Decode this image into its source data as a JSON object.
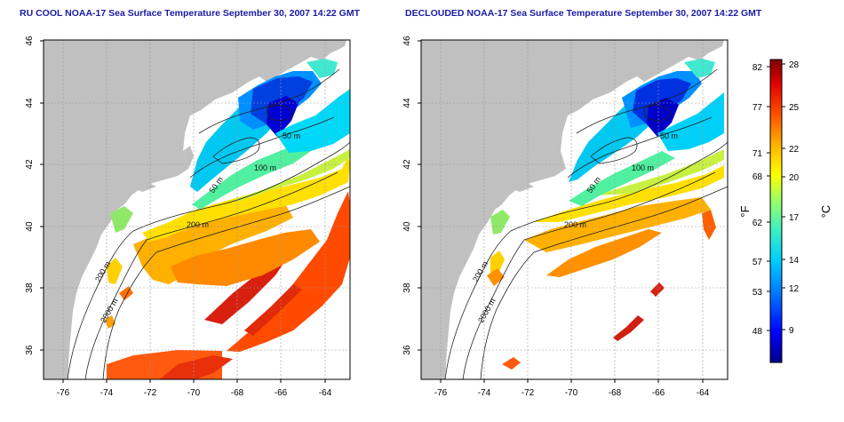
{
  "maps": [
    {
      "id": "ru-cool",
      "title": "RU COOL NOAA-17 Sea Surface Temperature September 30, 2007 14:22 GMT",
      "variant": "raw",
      "x_ticks": [
        "-76",
        "-74",
        "-72",
        "-70",
        "-68",
        "-66",
        "-64"
      ],
      "y_ticks": [
        "36",
        "38",
        "40",
        "42",
        "44",
        "46"
      ],
      "contour_labels": [
        "50 m",
        "100 m",
        "200 m",
        "50 m",
        "200 m",
        "2000 m"
      ]
    },
    {
      "id": "declouded",
      "title": "DECLOUDED NOAA-17 Sea Surface Temperature September 30, 2007 14:22 GMT",
      "variant": "declouded",
      "x_ticks": [
        "-76",
        "-74",
        "-72",
        "-70",
        "-68",
        "-66",
        "-64"
      ],
      "y_ticks": [
        "36",
        "38",
        "40",
        "42",
        "44",
        "46"
      ],
      "contour_labels": [
        "50 m",
        "100 m",
        "200 m",
        "50 m",
        "200 m",
        "2000 m"
      ]
    }
  ],
  "colorbar": {
    "fahrenheit_unit": "°F",
    "celsius_unit": "°C",
    "fahrenheit_ticks": [
      "82",
      "77",
      "71",
      "68",
      "62",
      "57",
      "53",
      "48"
    ],
    "celsius_ticks": [
      "28",
      "25",
      "22",
      "20",
      "17",
      "14",
      "12",
      "9"
    ],
    "colors": [
      "#00008b",
      "#0000ff",
      "#0070ff",
      "#00d0ff",
      "#40f0c0",
      "#a0ff60",
      "#ffff00",
      "#ffb000",
      "#ff5000",
      "#e00000",
      "#800000"
    ]
  },
  "legend_colors": {
    "land": "#c0c0c0",
    "contour": "#222222",
    "grid": "#9a9a9a"
  }
}
